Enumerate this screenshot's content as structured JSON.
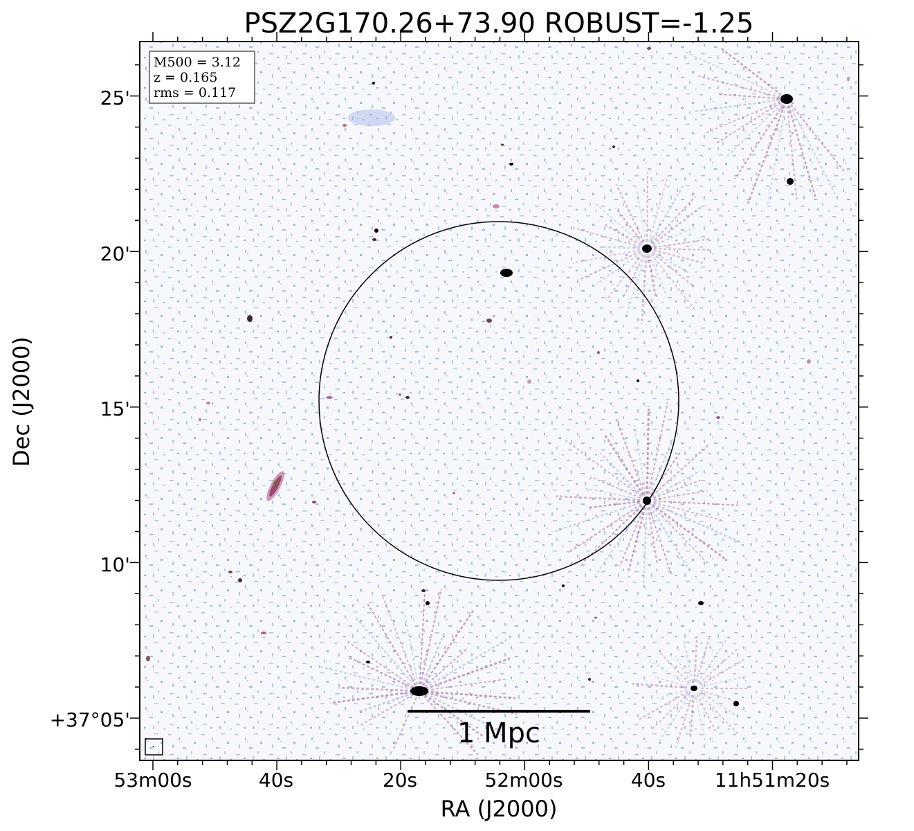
{
  "title": "PSZ2G170.26+73.90 ROBUST=-1.25",
  "xlabel": "RA (J2000)",
  "ylabel": "Dec (J2000)",
  "x_ticks": [
    "53m00s",
    "40s",
    "20s",
    "52m00s",
    "40s",
    "11h51m20s"
  ],
  "y_ticks": [
    "+37°05'",
    "10'",
    "15'",
    "20'",
    "25'"
  ],
  "info_box": {
    "mass": "M500 = 3.12",
    "redshift": "z = 0.165",
    "rms": "rms = 0.117"
  },
  "scale_bar": {
    "label": "1 Mpc"
  },
  "colors": {
    "noise": "#9db3e6",
    "residual": "#b05a90",
    "source": "#000000",
    "frame": "#000000"
  }
}
